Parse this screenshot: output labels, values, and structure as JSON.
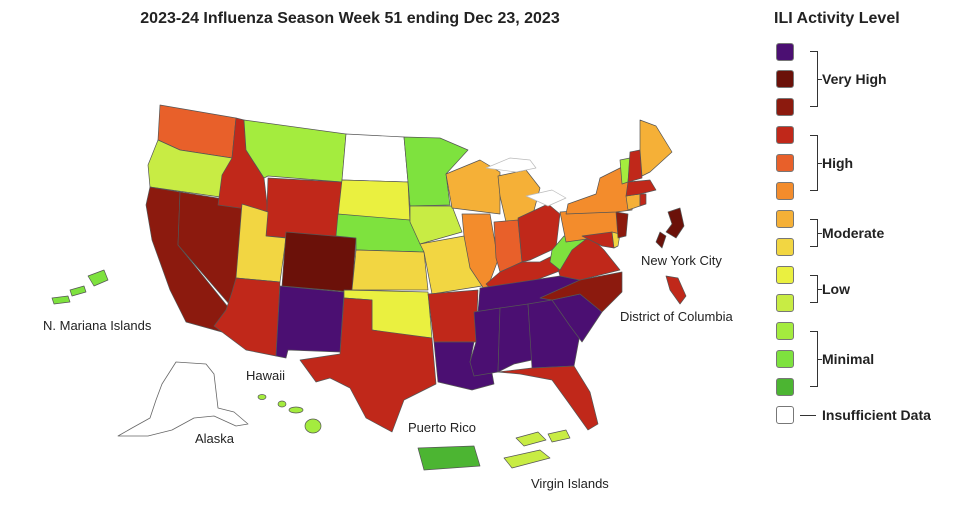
{
  "title": "2023-24 Influenza Season Week 51 ending Dec 23, 2023",
  "legend": {
    "title": "ILI Activity Level",
    "groups": {
      "very_high": "Very High",
      "high": "High",
      "moderate": "Moderate",
      "low": "Low",
      "minimal": "Minimal",
      "insufficient": "Insufficient Data"
    },
    "colors": {
      "vh13": "#4b0f72",
      "vh12": "#6b1109",
      "vh11": "#8c1a0e",
      "h10": "#c0281a",
      "h9": "#e8602a",
      "h8": "#f38c2c",
      "m7": "#f5b037",
      "m6": "#f2d642",
      "l5": "#eaf040",
      "l4": "#c8ec44",
      "min3": "#a4ec3e",
      "min2": "#7ee23e",
      "min1": "#4cb532",
      "nd": "#ffffff"
    }
  },
  "labels": {
    "nyc": "New York City",
    "dc": "District of Columbia",
    "nmi": "N. Mariana Islands",
    "hawaii": "Hawaii",
    "alaska": "Alaska",
    "pr": "Puerto Rico",
    "vi": "Virgin Islands"
  }
}
